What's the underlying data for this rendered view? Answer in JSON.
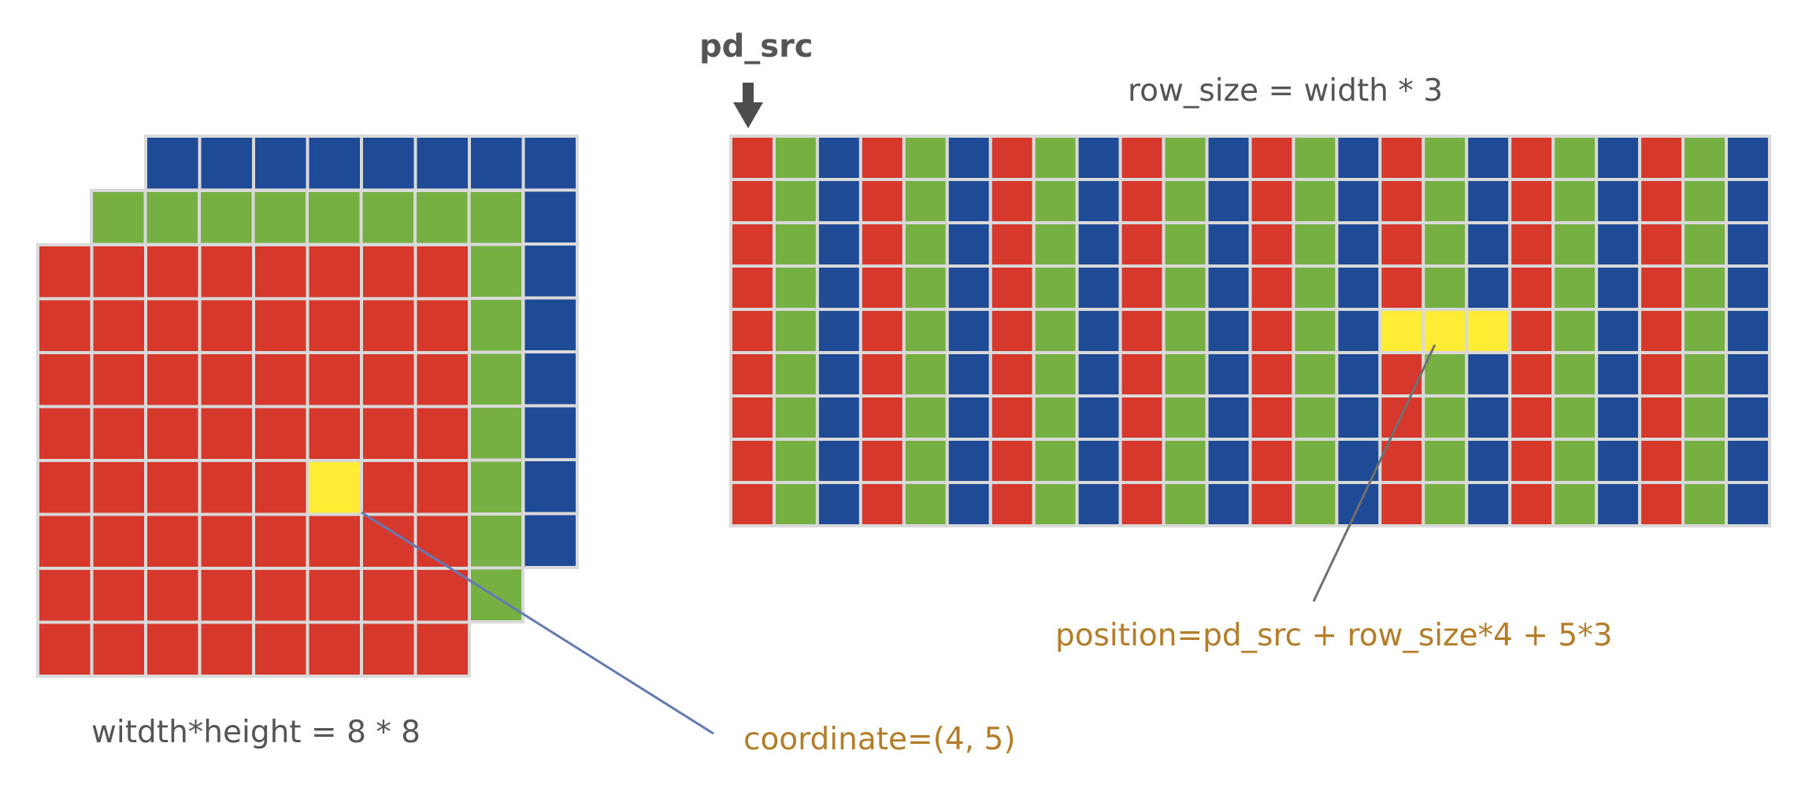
{
  "colors": {
    "red": "#d6382c",
    "green": "#76b043",
    "blue": "#1f4a96",
    "yellow": "#ffed35",
    "grid_line": "#d9d9d9",
    "text_gray": "#555555",
    "text_orange": "#b47d2a",
    "leader_blue": "#6478b4",
    "leader_gray": "#707070",
    "arrow": "#4d4d4d"
  },
  "left_grid": {
    "cols": 8,
    "rows": 8,
    "channels": [
      "blue",
      "green",
      "red"
    ],
    "highlight": {
      "col": 5,
      "row": 4
    }
  },
  "right_grid": {
    "pixels_per_row": 8,
    "rows": 9,
    "channel_sequence": [
      "red",
      "green",
      "blue"
    ],
    "highlight": {
      "row": 4,
      "pixel": 5
    }
  },
  "labels": {
    "pd_src": "pd_src",
    "row_size": "row_size = width * 3",
    "position": "position=pd_src + row_size*4 + 5*3",
    "dimensions": "witdth*height = 8 * 8",
    "coordinate": "coordinate=(4, 5)"
  }
}
